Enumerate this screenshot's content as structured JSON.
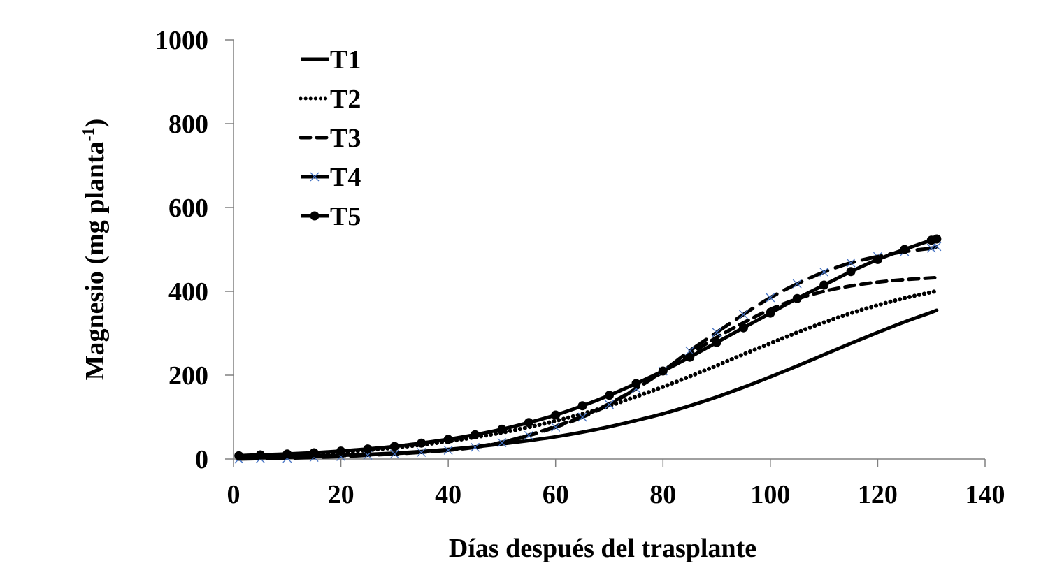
{
  "chart_data": {
    "type": "line",
    "title": "",
    "xlabel": "Días después del trasplante",
    "ylabel_main": "Magnesio (mg planta",
    "ylabel_sup": "-1",
    "ylabel_close": ")",
    "ylabel": "Magnesio (mg planta-1)",
    "xlim": [
      0,
      140
    ],
    "ylim": [
      0,
      1000
    ],
    "xticks": [
      0,
      20,
      40,
      60,
      80,
      100,
      120,
      140
    ],
    "yticks": [
      0,
      200,
      400,
      600,
      800,
      1000
    ],
    "grid": false,
    "legend_position": "upper-left",
    "x": [
      1,
      5,
      10,
      15,
      20,
      25,
      30,
      35,
      40,
      45,
      50,
      55,
      60,
      65,
      70,
      75,
      80,
      85,
      90,
      95,
      100,
      105,
      110,
      115,
      120,
      125,
      130,
      131
    ],
    "series": [
      {
        "name": "T1",
        "style": "solid",
        "marker": "none",
        "color": "#000000",
        "values": [
          3,
          4,
          5,
          7,
          9,
          11,
          14,
          18,
          23,
          29,
          36,
          44,
          53,
          64,
          77,
          92,
          108,
          127,
          148,
          171,
          196,
          222,
          249,
          276,
          302,
          327,
          350,
          355
        ]
      },
      {
        "name": "T2",
        "style": "dotted",
        "marker": "none",
        "color": "#000000",
        "values": [
          5,
          7,
          9,
          12,
          16,
          21,
          27,
          34,
          42,
          52,
          63,
          76,
          91,
          108,
          127,
          149,
          172,
          197,
          223,
          250,
          276,
          302,
          326,
          348,
          367,
          384,
          398,
          401
        ]
      },
      {
        "name": "T3",
        "style": "dashed",
        "marker": "none",
        "color": "#000000",
        "values": [
          2,
          3,
          4,
          6,
          8,
          10,
          13,
          17,
          22,
          29,
          40,
          57,
          78,
          102,
          132,
          168,
          208,
          250,
          290,
          325,
          357,
          382,
          400,
          413,
          422,
          428,
          432,
          433
        ]
      },
      {
        "name": "T4",
        "style": "longdash",
        "marker": "x",
        "color": "#000000",
        "marker_color": "#4472C4",
        "values": [
          0,
          1,
          2,
          4,
          6,
          9,
          12,
          16,
          21,
          28,
          39,
          56,
          76,
          100,
          130,
          168,
          210,
          258,
          302,
          345,
          385,
          418,
          446,
          468,
          483,
          495,
          503,
          507
        ]
      },
      {
        "name": "T5",
        "style": "solid",
        "marker": "circle",
        "color": "#000000",
        "values": [
          8,
          10,
          12,
          15,
          19,
          24,
          30,
          38,
          47,
          58,
          71,
          87,
          105,
          127,
          152,
          180,
          210,
          243,
          278,
          313,
          348,
          383,
          415,
          447,
          476,
          500,
          522,
          525
        ]
      }
    ]
  },
  "legend": {
    "items": [
      {
        "label": "T1"
      },
      {
        "label": "T2"
      },
      {
        "label": "T3"
      },
      {
        "label": "T4"
      },
      {
        "label": "T5"
      }
    ]
  },
  "axes": {
    "x_title": "Días después del trasplante",
    "y_title_main": "Magnesio (mg planta",
    "y_title_sup": "-1",
    "y_title_close": ")",
    "x_tick_labels": [
      "0",
      "20",
      "40",
      "60",
      "80",
      "100",
      "120",
      "140"
    ],
    "y_tick_labels": [
      "0",
      "200",
      "400",
      "600",
      "800",
      "1000"
    ]
  },
  "colors": {
    "axis": "#808080",
    "line": "#000000",
    "t4_marker": "#4472C4"
  }
}
